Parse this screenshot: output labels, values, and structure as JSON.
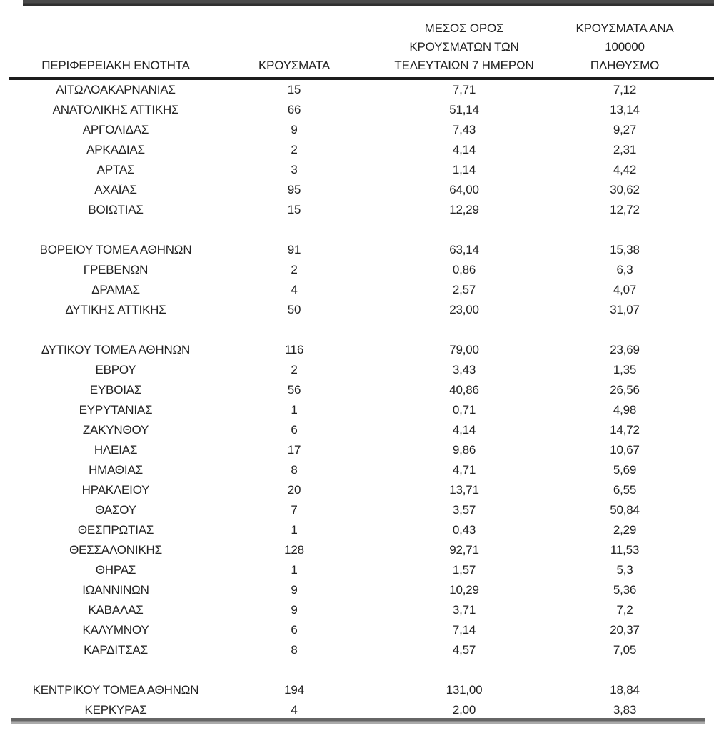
{
  "chart_data": {
    "type": "table",
    "title": "",
    "columns": [
      "ΠΕΡΙΦΕΡΕΙΑΚΗ ΕΝΟΤΗΤΑ",
      "ΚΡΟΥΣΜΑΤΑ",
      "ΜΕΣΟΣ ΟΡΟΣ ΚΡΟΥΣΜΑΤΩΝ ΤΩΝ ΤΕΛΕΥΤΑΙΩΝ 7 ΗΜΕΡΩΝ",
      "ΚΡΟΥΣΜΑΤΑ ΑΝΑ 100000 ΠΛΗΘΥΣΜΟ"
    ],
    "decimal_separator": ",",
    "rows": [
      [
        "ΑΙΤΩΛΟΑΚΑΡΝΑΝΙΑΣ",
        "15",
        "7,71",
        "7,12"
      ],
      [
        "ΑΝΑΤΟΛΙΚΗΣ ΑΤΤΙΚΗΣ",
        "66",
        "51,14",
        "13,14"
      ],
      [
        "ΑΡΓΟΛΙΔΑΣ",
        "9",
        "7,43",
        "9,27"
      ],
      [
        "ΑΡΚΑΔΙΑΣ",
        "2",
        "4,14",
        "2,31"
      ],
      [
        "ΑΡΤΑΣ",
        "3",
        "1,14",
        "4,42"
      ],
      [
        "ΑΧΑΪΑΣ",
        "95",
        "64,00",
        "30,62"
      ],
      [
        "ΒΟΙΩΤΙΑΣ",
        "15",
        "12,29",
        "12,72"
      ],
      null,
      [
        "ΒΟΡΕΙΟΥ ΤΟΜΕΑ ΑΘΗΝΩΝ",
        "91",
        "63,14",
        "15,38"
      ],
      [
        "ΓΡΕΒΕΝΩΝ",
        "2",
        "0,86",
        "6,3"
      ],
      [
        "ΔΡΑΜΑΣ",
        "4",
        "2,57",
        "4,07"
      ],
      [
        "ΔΥΤΙΚΗΣ ΑΤΤΙΚΗΣ",
        "50",
        "23,00",
        "31,07"
      ],
      null,
      [
        "ΔΥΤΙΚΟΥ ΤΟΜΕΑ ΑΘΗΝΩΝ",
        "116",
        "79,00",
        "23,69"
      ],
      [
        "ΕΒΡΟΥ",
        "2",
        "3,43",
        "1,35"
      ],
      [
        "ΕΥΒΟΙΑΣ",
        "56",
        "40,86",
        "26,56"
      ],
      [
        "ΕΥΡΥΤΑΝΙΑΣ",
        "1",
        "0,71",
        "4,98"
      ],
      [
        "ΖΑΚΥΝΘΟΥ",
        "6",
        "4,14",
        "14,72"
      ],
      [
        "ΗΛΕΙΑΣ",
        "17",
        "9,86",
        "10,67"
      ],
      [
        "ΗΜΑΘΙΑΣ",
        "8",
        "4,71",
        "5,69"
      ],
      [
        "ΗΡΑΚΛΕΙΟΥ",
        "20",
        "13,71",
        "6,55"
      ],
      [
        "ΘΑΣΟΥ",
        "7",
        "3,57",
        "50,84"
      ],
      [
        "ΘΕΣΠΡΩΤΙΑΣ",
        "1",
        "0,43",
        "2,29"
      ],
      [
        "ΘΕΣΣΑΛΟΝΙΚΗΣ",
        "128",
        "92,71",
        "11,53"
      ],
      [
        "ΘΗΡΑΣ",
        "1",
        "1,57",
        "5,3"
      ],
      [
        "ΙΩΑΝΝΙΝΩΝ",
        "9",
        "10,29",
        "5,36"
      ],
      [
        "ΚΑΒΑΛΑΣ",
        "9",
        "3,71",
        "7,2"
      ],
      [
        "ΚΑΛΥΜΝΟΥ",
        "6",
        "7,14",
        "20,37"
      ],
      [
        "ΚΑΡΔΙΤΣΑΣ",
        "8",
        "4,57",
        "7,05"
      ],
      null,
      [
        "ΚΕΝΤΡΙΚΟΥ ΤΟΜΕΑ ΑΘΗΝΩΝ",
        "194",
        "131,00",
        "18,84"
      ],
      [
        "ΚΕΡΚΥΡΑΣ",
        "4",
        "2,00",
        "3,83"
      ]
    ]
  },
  "header": {
    "col1": "ΠΕΡΙΦΕΡΕΙΑΚΗ ΕΝΟΤΗΤΑ",
    "col2": "ΚΡΟΥΣΜΑΤΑ",
    "col3": "ΜΕΣΟΣ ΟΡΟΣ\nΚΡΟΥΣΜΑΤΩΝ ΤΩΝ\nΤΕΛΕΥΤΑΙΩΝ 7 ΗΜΕΡΩΝ",
    "col4": "ΚΡΟΥΣΜΑΤΑ ΑΝΑ 100000\nΠΛΗΘΥΣΜΟ"
  },
  "colors": {
    "text": "#222222",
    "header_rule": "#1c1c1c",
    "top_bar": "#3d3d3d",
    "bottom_bar": "#8a8a8a",
    "background": "#ffffff"
  }
}
